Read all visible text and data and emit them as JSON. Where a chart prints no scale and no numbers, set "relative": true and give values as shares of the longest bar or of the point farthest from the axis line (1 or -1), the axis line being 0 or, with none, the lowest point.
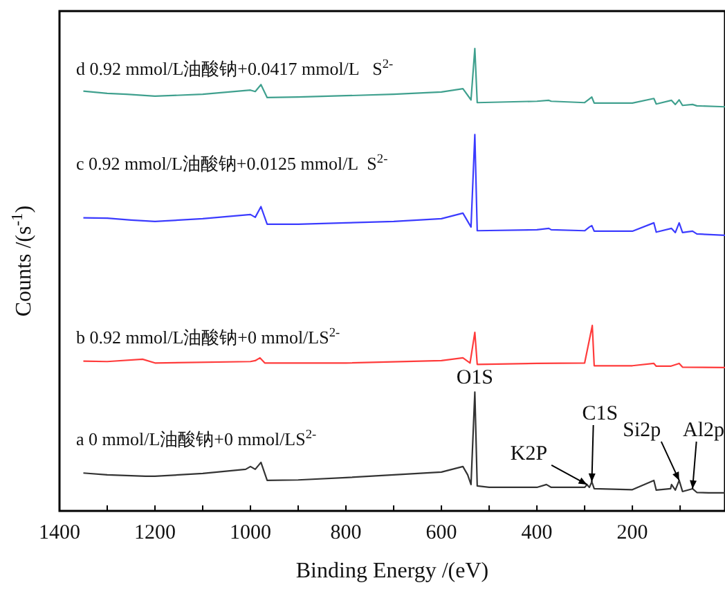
{
  "chart_data": {
    "type": "line",
    "relative": true,
    "xlabel": "Binding Energy /(eV)",
    "ylabel": "Counts /(s$^{-1}$)",
    "xlim": [
      1400,
      6
    ],
    "xticks": [
      1400,
      {
        "value": 1300,
        "label": null
      },
      1200,
      {
        "value": 1100,
        "label": null
      },
      1000,
      {
        "value": 900,
        "label": null
      },
      800,
      {
        "value": 700,
        "label": null
      },
      600,
      {
        "value": 500,
        "label": null
      },
      400,
      {
        "value": 300,
        "label": null
      },
      200,
      {
        "value": 100,
        "label": null
      }
    ],
    "tick_labels": "x",
    "grid": false,
    "series": [
      {
        "name": "a 0 mmol/L油酸钠+0 mmol/LS$^{2-}$",
        "color": "#333333",
        "x": [
          1350,
          1300,
          1220,
          1200,
          1100,
          1010,
          1000,
          990,
          978,
          965,
          900,
          800,
          700,
          600,
          555,
          545,
          538,
          530,
          525,
          500,
          400,
          380,
          370,
          300,
          295,
          290,
          285,
          280,
          200,
          155,
          150,
          120,
          118,
          110,
          102,
          95,
          74,
          65,
          40,
          6
        ],
        "values": [
          0.082,
          0.078,
          0.075,
          0.075,
          0.081,
          0.09,
          0.096,
          0.09,
          0.105,
          0.066,
          0.067,
          0.072,
          0.078,
          0.084,
          0.096,
          0.078,
          0.057,
          0.257,
          0.054,
          0.051,
          0.051,
          0.057,
          0.051,
          0.051,
          0.057,
          0.051,
          0.063,
          0.048,
          0.046,
          0.066,
          0.045,
          0.048,
          0.057,
          0.045,
          0.066,
          0.042,
          0.048,
          0.04,
          0.039,
          0.039
        ]
      },
      {
        "name": "b 0.92 mmol/L油酸钠+0 mmol/LS$^{2-}$",
        "color": "#ff3b3b",
        "x": [
          1350,
          1300,
          1226,
          1200,
          1000,
          990,
          980,
          970,
          800,
          600,
          555,
          540,
          530,
          525,
          400,
          300,
          284,
          280,
          200,
          155,
          150,
          120,
          102,
          95,
          6
        ],
        "values": [
          0.324,
          0.323,
          0.328,
          0.32,
          0.323,
          0.325,
          0.331,
          0.32,
          0.32,
          0.325,
          0.331,
          0.32,
          0.386,
          0.317,
          0.319,
          0.32,
          0.401,
          0.314,
          0.314,
          0.319,
          0.313,
          0.313,
          0.319,
          0.311,
          0.31
        ]
      },
      {
        "name": "c 0.92 mmol/L油酸钠+0.0125 mmol/L  S$^{2-}$",
        "color": "#3b3bff",
        "x": [
          1350,
          1300,
          1250,
          1200,
          1100,
          1000,
          990,
          978,
          965,
          900,
          800,
          700,
          600,
          555,
          538,
          530,
          525,
          400,
          375,
          370,
          300,
          290,
          285,
          280,
          200,
          155,
          150,
          118,
          110,
          102,
          95,
          74,
          65,
          6
        ],
        "values": [
          0.634,
          0.633,
          0.629,
          0.626,
          0.632,
          0.641,
          0.635,
          0.658,
          0.62,
          0.62,
          0.623,
          0.626,
          0.632,
          0.644,
          0.614,
          0.814,
          0.606,
          0.608,
          0.611,
          0.608,
          0.606,
          0.614,
          0.617,
          0.605,
          0.605,
          0.623,
          0.603,
          0.611,
          0.602,
          0.623,
          0.602,
          0.605,
          0.599,
          0.596
        ]
      },
      {
        "name": "d 0.92 mmol/L油酸钠+0.0417 mmol/L   S$^{2-}$",
        "color": "#3fa08e",
        "x": [
          1350,
          1300,
          1260,
          1200,
          1100,
          1000,
          990,
          978,
          965,
          900,
          800,
          700,
          600,
          555,
          538,
          530,
          525,
          400,
          375,
          370,
          300,
          290,
          285,
          280,
          200,
          155,
          150,
          118,
          110,
          102,
          95,
          74,
          65,
          6
        ],
        "values": [
          0.908,
          0.903,
          0.901,
          0.897,
          0.901,
          0.91,
          0.907,
          0.922,
          0.894,
          0.895,
          0.898,
          0.901,
          0.906,
          0.913,
          0.889,
          1,
          0.883,
          0.886,
          0.888,
          0.886,
          0.883,
          0.891,
          0.895,
          0.882,
          0.882,
          0.892,
          0.88,
          0.888,
          0.879,
          0.889,
          0.877,
          0.879,
          0.876,
          0.874
        ]
      }
    ],
    "annotations": [
      {
        "text": "O1S",
        "x": 530,
        "y": 0.257
      },
      {
        "text": "K2P",
        "x": 295,
        "y": 0.057
      },
      {
        "text": "C1S",
        "x": 285,
        "y": 0.063
      },
      {
        "text": "Si2p",
        "x": 102,
        "y": 0.066
      },
      {
        "text": "Al2p",
        "x": 74,
        "y": 0.048
      }
    ]
  }
}
